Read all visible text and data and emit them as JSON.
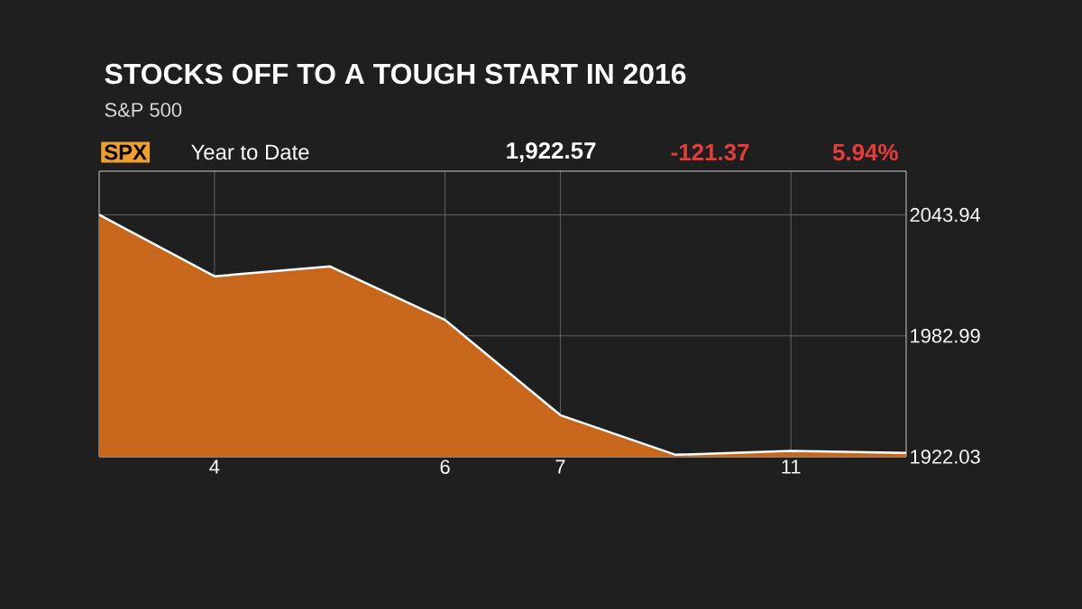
{
  "chart_data": {
    "type": "area",
    "title": "STOCKS OFF TO A TOUGH START IN 2016",
    "subtitle": "S&P 500",
    "annotations": [
      "SPX",
      "Year to Date",
      "1,922.57",
      "-121.37",
      "5.94%"
    ],
    "categories": [
      null,
      "4",
      null,
      "6",
      "7",
      null,
      "11",
      null
    ],
    "values": [
      2044,
      2013,
      2018,
      1991,
      1943,
      1923,
      1925,
      1924
    ],
    "color": "#c8671c",
    "ylim": [
      1922.03,
      2066
    ],
    "yticks": [
      1922.03,
      1982.99,
      2043.94
    ],
    "grid": true,
    "marker": "none"
  }
}
